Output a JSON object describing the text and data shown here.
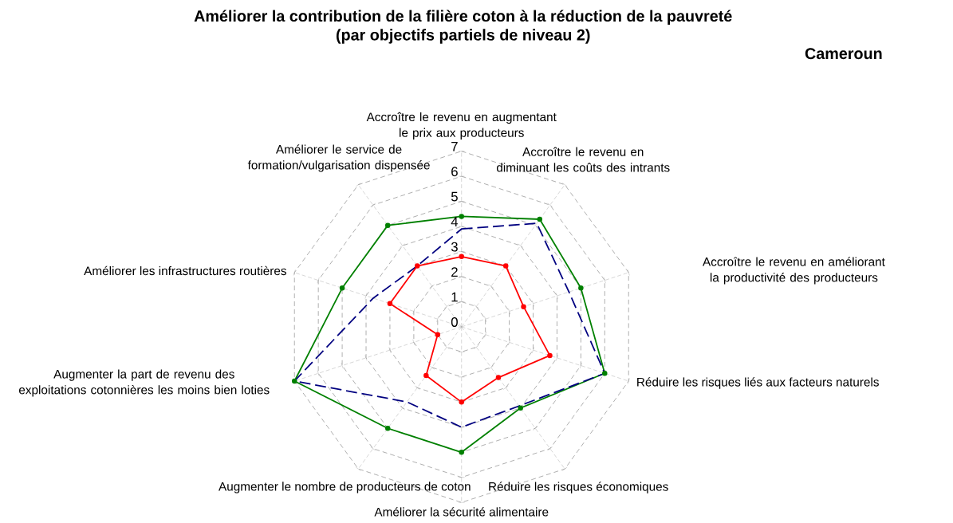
{
  "chart_data": {
    "type": "radar",
    "title": "Améliorer la contribution de la filière coton à la réduction de la pauvreté",
    "subtitle": "(par objectifs partiels de niveau 2)",
    "annotations": [
      "Cameroun"
    ],
    "categories": [
      "Accroître le revenu en augmentant le prix aux producteurs",
      "Accroître le revenu en diminuant les coûts des intrants",
      "Accroître le revenu en améliorant la productivité des producteurs",
      "Réduire les risques liés aux facteurs naturels",
      "Réduire les risques économiques",
      "Améliorer la sécurité alimentaire",
      "Augmenter le nombre de producteurs de coton",
      "Augmenter la part de revenu des exploitations cotonnières les moins bien loties",
      "Améliorer les infrastructures routières",
      "Améliorer le service de formation/vulgarisation dispensée"
    ],
    "series": [
      {
        "color": "#008000",
        "marker": "circle",
        "line_style": "solid",
        "values": [
          4.4,
          5.3,
          5.0,
          6.0,
          4.0,
          5.0,
          5.0,
          7.0,
          5.0,
          5.0
        ]
      },
      {
        "color": "#000080",
        "marker": "none",
        "line_style": "dashed",
        "values": [
          3.9,
          5.1,
          4.5,
          6.0,
          3.9,
          4.0,
          3.7,
          7.0,
          3.7,
          3.0
        ]
      },
      {
        "color": "#ff0000",
        "marker": "circle",
        "line_style": "solid",
        "values": [
          2.8,
          3.0,
          2.6,
          3.7,
          2.5,
          3.0,
          2.4,
          1.0,
          3.0,
          3.0
        ]
      }
    ],
    "ylim": [
      0,
      7
    ],
    "yticks": [
      0,
      1,
      2,
      3,
      4,
      5,
      6,
      7
    ],
    "grid": true
  }
}
